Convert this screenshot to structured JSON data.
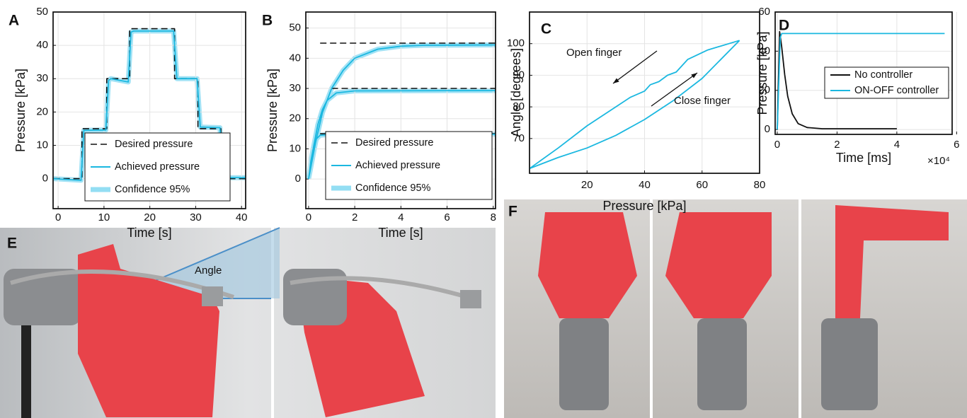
{
  "chart_data": [
    {
      "type": "line",
      "panel": "A",
      "xlabel": "Time [s]",
      "ylabel": "Pressure [kPa]",
      "xlim": [
        -1.1,
        40.9
      ],
      "xticks": [
        0,
        10,
        20,
        30,
        40
      ],
      "ylim": [
        -9,
        50
      ],
      "yticks": [
        0,
        10,
        20,
        30,
        40,
        50
      ],
      "grid": true,
      "legend": "lower center",
      "series": [
        {
          "name": "Desired pressure",
          "color": "#111111",
          "style": "dashed",
          "x": [
            -1,
            5.2,
            5.2,
            10.6,
            10.6,
            15.6,
            15.6,
            25.4,
            25.4,
            30.5,
            30.5,
            35.5,
            35.5,
            40.9
          ],
          "values": [
            0,
            0,
            15,
            15,
            30,
            30,
            45,
            45,
            30,
            30,
            15,
            15,
            0,
            0
          ]
        },
        {
          "name": "Achieved pressure",
          "color": "#1bb8e0",
          "style": "solid",
          "x": [
            -1,
            5,
            5.6,
            10.4,
            11,
            11.5,
            15.3,
            15.9,
            16.5,
            25.2,
            25.9,
            30.3,
            31,
            35.3,
            36,
            40.9
          ],
          "values": [
            0,
            -0.5,
            14.5,
            14.6,
            29.5,
            30,
            29,
            44,
            44.3,
            44.3,
            30,
            30,
            15.5,
            15.3,
            0.3,
            0.3
          ]
        },
        {
          "name": "Confidence 95%",
          "color": "#6fd3ef",
          "style": "band",
          "x": [
            -1,
            5,
            5.6,
            10.4,
            11,
            11.5,
            15.3,
            15.9,
            16.5,
            25.2,
            25.9,
            30.3,
            31,
            35.3,
            36,
            40.9
          ],
          "values": [
            0,
            -0.5,
            14.5,
            14.6,
            29.5,
            30,
            29,
            44,
            44.3,
            44.3,
            30,
            30,
            15.5,
            15.3,
            0.3,
            0.3
          ]
        }
      ]
    },
    {
      "type": "line",
      "panel": "B",
      "xlabel": "Time [s]",
      "ylabel": "Pressure [kPa]",
      "xlim": [
        -0.12,
        8.1
      ],
      "xticks": [
        0,
        2,
        4,
        6,
        8
      ],
      "ylim": [
        -9.8,
        55.3
      ],
      "yticks": [
        0,
        10,
        20,
        30,
        40,
        50
      ],
      "grid": true,
      "legend": "lower right",
      "series": [
        {
          "name": "Desired pressure",
          "color": "#111111",
          "style": "dashed",
          "x": [
            0.5,
            8.1,
            8.1,
            1,
            8.1,
            8.1,
            0.5,
            8.1
          ],
          "values": [
            15,
            15,
            null,
            30,
            30,
            null,
            45,
            45
          ]
        },
        {
          "name": "Achieved pressure",
          "color": "#1bb8e0",
          "style": "solid",
          "x": [
            0,
            0.1,
            0.2,
            0.3,
            0.5,
            1,
            8.1,
            8.1,
            0,
            0.2,
            0.4,
            0.6,
            0.8,
            1.2,
            2,
            8.1,
            8.1,
            0,
            0.3,
            0.6,
            1,
            1.5,
            2,
            3,
            4,
            5,
            8.1
          ],
          "values": [
            0,
            6,
            10,
            13,
            14.5,
            14.8,
            14.8,
            null,
            0,
            10,
            18,
            23,
            26,
            28.5,
            29.2,
            29.3,
            null,
            0,
            12,
            22,
            30,
            36,
            40,
            43,
            44,
            44.3,
            44.4
          ]
        },
        {
          "name": "Confidence 95%",
          "color": "#6fd3ef",
          "style": "band",
          "x": [
            0,
            0.1,
            0.2,
            0.3,
            0.5,
            1,
            8.1,
            8.1,
            0,
            0.2,
            0.4,
            0.6,
            0.8,
            1.2,
            2,
            8.1,
            8.1,
            0,
            0.3,
            0.6,
            1,
            1.5,
            2,
            3,
            4,
            5,
            8.1
          ],
          "values": [
            0,
            6,
            10,
            13,
            14.5,
            14.8,
            14.8,
            null,
            0,
            10,
            18,
            23,
            26,
            28.5,
            29.2,
            29.3,
            null,
            0,
            12,
            22,
            30,
            36,
            40,
            43,
            44,
            44.3,
            44.4
          ]
        }
      ]
    },
    {
      "type": "line",
      "panel": "C",
      "xlabel": "Pressure [kPa]",
      "ylabel": "Angle [degrees]",
      "xlim": [
        0,
        80
      ],
      "xticks": [
        20,
        40,
        60,
        80
      ],
      "ylim": [
        59,
        110
      ],
      "yticks": [
        70,
        80,
        90,
        100
      ],
      "grid": true,
      "annotations": [
        {
          "text": "Open finger"
        },
        {
          "text": "Close finger"
        }
      ],
      "series": [
        {
          "color": "#1bb8e0",
          "style": "solid",
          "x": [
            0,
            10,
            20,
            30,
            40,
            50,
            60,
            73
          ],
          "values": [
            60.5,
            64,
            67,
            71,
            76,
            82,
            89,
            101
          ]
        },
        {
          "color": "#1bb8e0",
          "style": "solid",
          "x": [
            73,
            62,
            55,
            53,
            51,
            48,
            45,
            42,
            40,
            35,
            30,
            20,
            10,
            0
          ],
          "values": [
            101,
            98,
            95,
            93,
            91,
            90,
            88,
            87,
            85,
            83,
            80,
            74,
            67,
            60.5
          ]
        }
      ]
    },
    {
      "type": "line",
      "panel": "D",
      "xlabel": "Time [ms]",
      "ylabel": "Pressure [kPa]",
      "x_multiplier": "×10⁴",
      "xlim": [
        -700,
        58500
      ],
      "xticks": [
        {
          "value": 0,
          "label": "0"
        },
        {
          "value": 20000,
          "label": "2"
        },
        {
          "value": 40000,
          "label": "4"
        },
        {
          "value": 60000,
          "label": "6"
        }
      ],
      "ylim": [
        -2.5,
        60
      ],
      "yticks": [
        0,
        20,
        40,
        60
      ],
      "grid": true,
      "legend": "center right",
      "series": [
        {
          "name": "No controller",
          "color": "#111111",
          "style": "solid",
          "x": [
            0,
            800,
            1500,
            2500,
            3500,
            5000,
            7000,
            10000,
            15000,
            40000
          ],
          "values": [
            0,
            50,
            42,
            28,
            17,
            8,
            3,
            1,
            0.4,
            0.4
          ]
        },
        {
          "name": "ON-OFF controller",
          "color": "#1bb8e0",
          "style": "solid",
          "x": [
            0,
            1000,
            1500,
            3000,
            56000
          ],
          "values": [
            0,
            47,
            49,
            49,
            49
          ]
        }
      ]
    }
  ],
  "photo_panels": [
    {
      "label": "E",
      "annotation": "Angle"
    },
    {
      "label": "F"
    }
  ]
}
